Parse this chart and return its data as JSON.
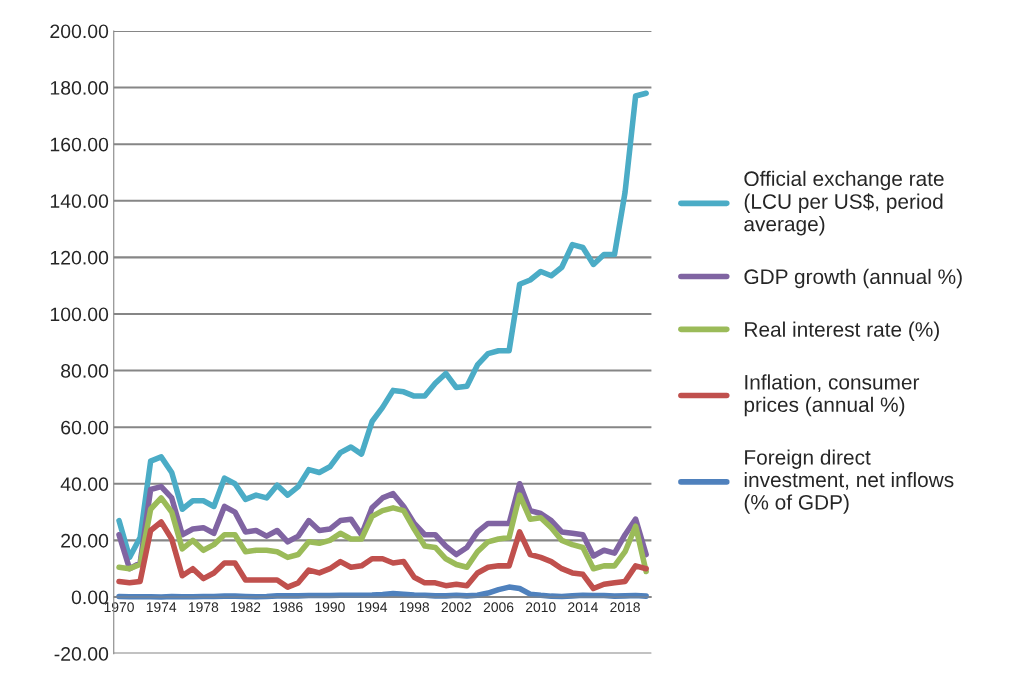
{
  "chart_data": {
    "type": "line",
    "categories": [
      "1970",
      null,
      null,
      null,
      "1974",
      null,
      null,
      null,
      "1978",
      null,
      null,
      null,
      "1982",
      null,
      null,
      null,
      "1986",
      null,
      null,
      null,
      "1990",
      null,
      null,
      null,
      "1994",
      null,
      null,
      null,
      "1998",
      null,
      null,
      null,
      "2002",
      null,
      null,
      null,
      "2006",
      null,
      null,
      null,
      "2010",
      null,
      null,
      null,
      "2014",
      null,
      null,
      null,
      "2018",
      null,
      null
    ],
    "series": [
      {
        "name": "Official exchange rate (LCU per US$, period average)",
        "color": "#4bacc6",
        "values": [
          27,
          14,
          21,
          48,
          49.5,
          44,
          31,
          34,
          34,
          32,
          42,
          40,
          34.5,
          36,
          35,
          39.5,
          36,
          39,
          45,
          44,
          46,
          51,
          53,
          50.5,
          62,
          67,
          73,
          72.5,
          71,
          71,
          75.5,
          79,
          74,
          74.5,
          82,
          86,
          87,
          87,
          110.5,
          112,
          115,
          113.5,
          116.5,
          124.5,
          123.5,
          117.5,
          121,
          121,
          143,
          177,
          178
        ]
      },
      {
        "name": "GDP growth (annual %)",
        "color": "#8064a2",
        "values": [
          22,
          10,
          12,
          38,
          39,
          35,
          22,
          24,
          24.5,
          22.5,
          32,
          30,
          23,
          23.5,
          21.5,
          23.5,
          19.5,
          21.5,
          27,
          23.5,
          24,
          27,
          27.5,
          22,
          31.5,
          35,
          36.5,
          32,
          26,
          22,
          22,
          18,
          15,
          17.5,
          23,
          26,
          26,
          26,
          40,
          30.5,
          29.5,
          27,
          23,
          22.5,
          22,
          14.5,
          16.5,
          15.5,
          22,
          27.5,
          15
        ]
      },
      {
        "name": "Real interest rate (%)",
        "color": "#9bbb59",
        "values": [
          10.5,
          10,
          11.5,
          31,
          35,
          30,
          17,
          20,
          16.5,
          18.5,
          22,
          22,
          16,
          16.5,
          16.5,
          16,
          14,
          15,
          19.5,
          19,
          20,
          22.5,
          20.5,
          20.5,
          28.5,
          30.5,
          31.5,
          30.5,
          24,
          18,
          17.5,
          13.5,
          11.5,
          10.5,
          16,
          19.5,
          20.5,
          21,
          36,
          27.5,
          28,
          24.5,
          20,
          18.5,
          17.5,
          10,
          11,
          11,
          16,
          25,
          9
        ]
      },
      {
        "name": "Inflation, consumer prices (annual %)",
        "color": "#c0504d",
        "values": [
          5.5,
          5,
          5.5,
          23.5,
          26.5,
          20.5,
          7.5,
          10,
          6.5,
          8.5,
          12,
          12,
          6,
          6,
          6,
          6,
          3.5,
          5,
          9.5,
          8.5,
          10,
          12.5,
          10.5,
          11,
          13.5,
          13.5,
          12,
          12.5,
          7,
          5,
          5,
          4,
          4.5,
          4,
          8.5,
          10.5,
          11,
          11,
          23,
          15,
          14,
          12.5,
          10,
          8.5,
          8,
          3,
          4.5,
          5,
          5.5,
          11,
          10
        ]
      },
      {
        "name": "Foreign direct investment, net inflows (% of GDP)",
        "color": "#4f81bd",
        "values": [
          0.2,
          0.1,
          0.1,
          0.1,
          0,
          0.2,
          0.1,
          0.1,
          0.2,
          0.2,
          0.3,
          0.3,
          0.2,
          0.1,
          0.2,
          0.4,
          0.4,
          0.4,
          0.5,
          0.5,
          0.5,
          0.6,
          0.6,
          0.6,
          0.7,
          0.9,
          1.2,
          1,
          0.7,
          0.6,
          0.4,
          0.4,
          0.6,
          0.4,
          0.6,
          1.4,
          2.6,
          3.5,
          3,
          1,
          0.6,
          0.3,
          0.2,
          0.4,
          0.6,
          0.5,
          0.5,
          0.3,
          0.4,
          0.5,
          0.3
        ]
      }
    ],
    "ylim": [
      -20,
      200
    ],
    "yticks": [
      {
        "value": -20,
        "label": "-20.00"
      },
      {
        "value": 0,
        "label": "0.00"
      },
      {
        "value": 20,
        "label": "20.00"
      },
      {
        "value": 40,
        "label": "40.00"
      },
      {
        "value": 60,
        "label": "60.00"
      },
      {
        "value": 80,
        "label": "80.00"
      },
      {
        "value": 100,
        "label": "100.00"
      },
      {
        "value": 120,
        "label": "120.00"
      },
      {
        "value": 140,
        "label": "140.00"
      },
      {
        "value": 160,
        "label": "160.00"
      },
      {
        "value": 180,
        "label": "180.00"
      },
      {
        "value": 200,
        "label": "200.00"
      }
    ],
    "grid": "y",
    "legend": "right",
    "marker": "none",
    "line_style": "solid"
  }
}
